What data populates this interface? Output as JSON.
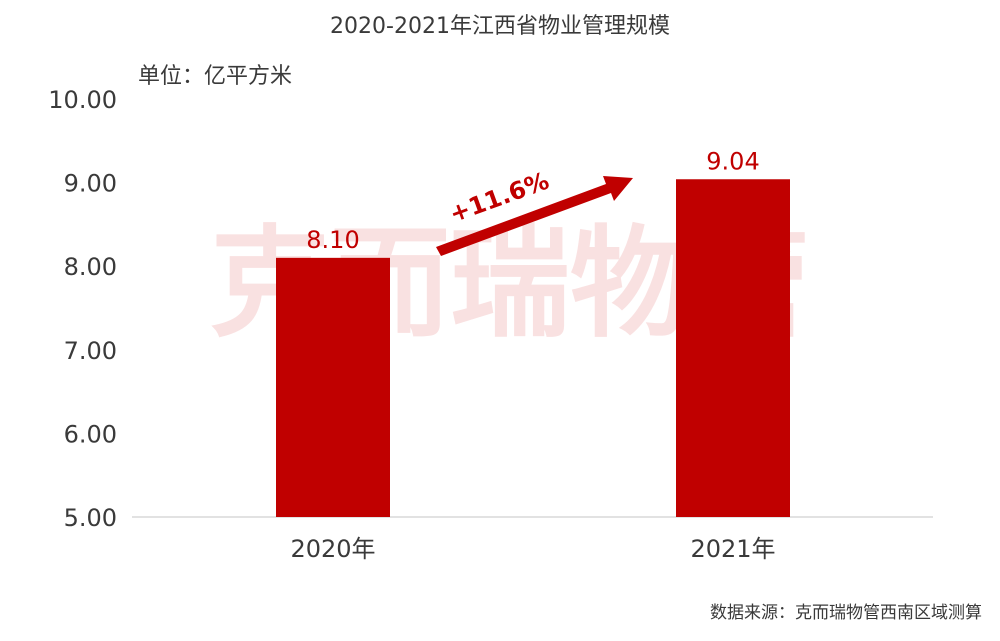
{
  "chart_data": {
    "type": "bar",
    "title": "2020-2021年江西省物业管理规模",
    "unit_label": "单位：亿平方米",
    "categories": [
      "2020年",
      "2021年"
    ],
    "values": [
      8.1,
      9.04
    ],
    "value_labels": [
      "8.10",
      "9.04"
    ],
    "ylim": [
      5.0,
      10.0
    ],
    "yticks": [
      "5.00",
      "6.00",
      "7.00",
      "8.00",
      "9.00",
      "10.00"
    ],
    "bar_color": "#c00000",
    "growth_annotation": "+11.6%",
    "watermark": "克而瑞物管",
    "source": "数据来源：克而瑞物管西南区域测算",
    "grid": false
  }
}
